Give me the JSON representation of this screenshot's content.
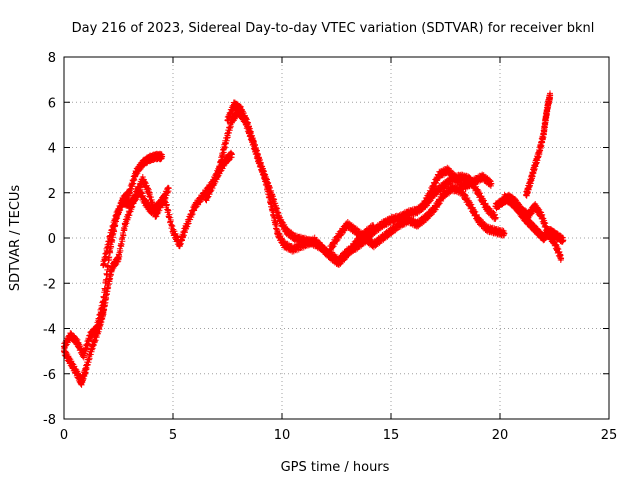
{
  "chart_data": {
    "type": "scatter",
    "title": "Day 216 of 2023, Sidereal Day-to-day VTEC variation (SDTVAR) for receiver bknl",
    "xlabel": "GPS time / hours",
    "ylabel": "SDTVAR / TECUs",
    "xlim": [
      0,
      25
    ],
    "ylim": [
      -8,
      8
    ],
    "xticks": [
      0,
      5,
      10,
      15,
      20,
      25
    ],
    "yticks": [
      -8,
      -6,
      -4,
      -2,
      0,
      2,
      4,
      6,
      8
    ],
    "grid": true,
    "marker": "+",
    "series": [
      {
        "name": "satellite-arc-1",
        "color": "#ff0000",
        "x": [
          0.0,
          0.3,
          0.6,
          0.8,
          1.0,
          1.3,
          1.6,
          1.8,
          2.0,
          2.2,
          2.5,
          2.8,
          3.1,
          3.4,
          3.7,
          4.0,
          4.3,
          4.6,
          5.0,
          5.3,
          5.6,
          6.0,
          6.4,
          6.8,
          7.1,
          7.4,
          7.7,
          8.0,
          8.3,
          8.6,
          8.9,
          9.2,
          9.5,
          9.8,
          10.1,
          10.5,
          11.0,
          11.5,
          12.0,
          12.5
        ],
        "y": [
          -5.0,
          -5.5,
          -6.0,
          -6.4,
          -5.8,
          -4.8,
          -4.0,
          -3.3,
          -2.2,
          -1.3,
          -0.9,
          0.6,
          1.4,
          2.2,
          1.6,
          1.2,
          1.4,
          1.8,
          0.3,
          -0.3,
          0.5,
          1.4,
          1.9,
          2.4,
          3.0,
          4.2,
          5.2,
          5.6,
          5.2,
          4.4,
          3.5,
          2.7,
          1.5,
          0.2,
          -0.3,
          -0.5,
          -0.3,
          -0.1,
          -0.6,
          -0.9
        ]
      },
      {
        "name": "satellite-arc-2",
        "color": "#ff0000",
        "x": [
          0.0,
          0.3,
          0.6,
          0.9,
          1.2,
          1.5,
          1.8,
          2.1,
          2.4,
          2.7,
          3.0,
          3.3,
          3.6,
          3.9,
          4.2,
          4.5
        ],
        "y": [
          -4.8,
          -4.3,
          -4.6,
          -5.2,
          -4.3,
          -4.0,
          -2.8,
          -0.6,
          0.9,
          1.7,
          2.0,
          2.9,
          3.3,
          3.5,
          3.6,
          3.6
        ]
      },
      {
        "name": "satellite-arc-3",
        "color": "#ff0000",
        "x": [
          1.8,
          2.1,
          2.4,
          2.7,
          3.0,
          3.3,
          3.6,
          3.9,
          4.2,
          4.5,
          4.8
        ],
        "y": [
          -1.2,
          0.0,
          1.0,
          1.6,
          1.5,
          1.8,
          2.6,
          2.0,
          1.0,
          1.6,
          2.2
        ]
      },
      {
        "name": "satellite-arc-4",
        "color": "#ff0000",
        "x": [
          6.5,
          6.8,
          7.1,
          7.4,
          7.7
        ],
        "y": [
          1.7,
          2.3,
          2.9,
          3.4,
          3.7
        ]
      },
      {
        "name": "satellite-arc-5",
        "color": "#ff0000",
        "x": [
          7.5,
          7.8,
          8.1,
          8.4,
          8.7,
          9.0,
          9.3,
          9.6,
          9.9,
          10.2,
          10.6,
          11.0,
          11.4,
          11.8,
          12.2,
          12.6,
          13.0,
          13.4,
          13.8,
          14.2
        ],
        "y": [
          5.2,
          5.9,
          5.7,
          5.1,
          4.2,
          3.3,
          2.5,
          1.7,
          0.8,
          0.3,
          0.0,
          -0.1,
          -0.2,
          -0.4,
          -0.8,
          -1.1,
          -0.7,
          -0.2,
          0.2,
          0.5
        ]
      },
      {
        "name": "satellite-arc-6",
        "color": "#ff0000",
        "x": [
          12.2,
          12.6,
          13.0,
          13.4,
          13.8,
          14.2,
          14.6,
          15.0,
          15.4,
          15.8,
          16.2,
          16.6,
          17.0,
          17.4,
          17.8,
          18.2,
          18.6,
          19.0,
          19.4,
          19.8,
          20.2
        ],
        "y": [
          -0.5,
          0.1,
          0.6,
          0.3,
          0.0,
          -0.3,
          0.0,
          0.3,
          0.6,
          0.8,
          0.6,
          0.9,
          1.3,
          1.9,
          2.2,
          2.1,
          1.5,
          0.8,
          0.4,
          0.3,
          0.2
        ]
      },
      {
        "name": "satellite-arc-7",
        "color": "#ff0000",
        "x": [
          12.6,
          13.0,
          13.4,
          13.8,
          14.2,
          14.6,
          15.0,
          15.4,
          15.8,
          16.2,
          16.6,
          17.0,
          17.4,
          17.8,
          18.2,
          18.6,
          19.0,
          19.4,
          19.8
        ],
        "y": [
          -1.0,
          -0.6,
          -0.4,
          -0.1,
          0.3,
          0.6,
          0.8,
          0.9,
          1.1,
          1.2,
          1.5,
          2.0,
          2.3,
          2.6,
          2.7,
          2.6,
          2.0,
          1.3,
          0.9
        ]
      },
      {
        "name": "satellite-arc-8",
        "color": "#ff0000",
        "x": [
          16.4,
          16.8,
          17.2,
          17.6,
          18.0,
          18.4,
          18.8,
          19.2,
          19.6
        ],
        "y": [
          1.3,
          2.0,
          2.8,
          3.0,
          2.6,
          2.3,
          2.5,
          2.7,
          2.4
        ]
      },
      {
        "name": "satellite-arc-9",
        "color": "#ff0000",
        "x": [
          20.2,
          20.5,
          20.8,
          21.1,
          21.4,
          21.7,
          22.0,
          22.3,
          22.6,
          22.9
        ],
        "y": [
          1.8,
          1.6,
          1.3,
          0.9,
          0.6,
          0.3,
          0.0,
          0.3,
          0.1,
          -0.1
        ]
      },
      {
        "name": "satellite-arc-10",
        "color": "#ff0000",
        "x": [
          19.8,
          20.1,
          20.4,
          20.7,
          21.0,
          21.3,
          21.6,
          21.9,
          22.2,
          22.5,
          22.8
        ],
        "y": [
          1.4,
          1.6,
          1.8,
          1.6,
          1.2,
          1.0,
          1.4,
          1.0,
          0.2,
          -0.2,
          -0.9
        ]
      },
      {
        "name": "satellite-arc-11",
        "color": "#ff0000",
        "x": [
          21.2,
          21.4,
          21.6,
          21.8,
          22.0,
          22.1,
          22.2,
          22.3
        ],
        "y": [
          1.9,
          2.5,
          3.2,
          3.8,
          4.6,
          5.3,
          5.9,
          6.3
        ]
      }
    ]
  }
}
